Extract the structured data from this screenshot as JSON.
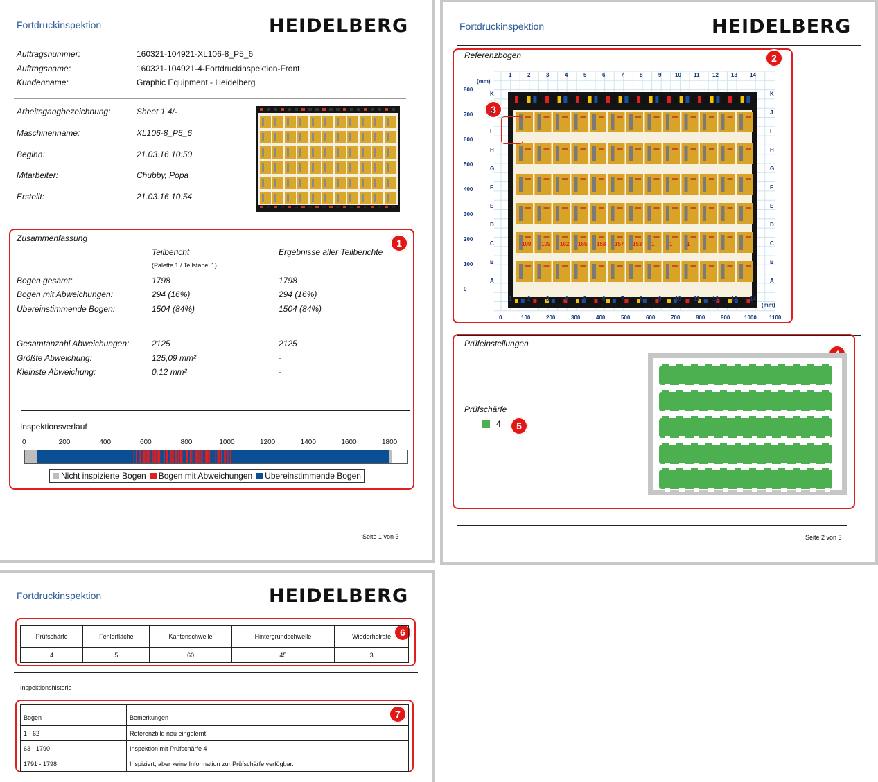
{
  "doc_title": "Fortdruckinspektion",
  "logo_text": "HEIDELBERG",
  "page1": {
    "info_top": [
      {
        "label": "Auftragsnummer:",
        "value": "160321-104921-XL106-8_P5_6"
      },
      {
        "label": "Auftragsname:",
        "value": "160321-104921-4-Fortdruckinspektion-Front"
      },
      {
        "label": "Kundenname:",
        "value": "Graphic Equipment - Heidelberg"
      }
    ],
    "info_job": [
      {
        "label": "Arbeitsgangbezeichnung:",
        "value": "Sheet 1  4/-"
      },
      {
        "label": "Maschinenname:",
        "value": "XL106-8_P5_6"
      },
      {
        "label": "Beginn:",
        "value": "21.03.16 10:50"
      },
      {
        "label": "Mitarbeiter:",
        "value": "Chubby, Popa"
      },
      {
        "label": "Erstellt:",
        "value": "21.03.16 10:54"
      }
    ],
    "summary": {
      "title": "Zusammenfassung",
      "col1_head": "Teilbericht",
      "col1_sub": "(Palette 1 / Teilstapel 1)",
      "col2_head": "Ergebnisse aller Teilberichte",
      "rows": [
        {
          "label": "Bogen gesamt:",
          "v1": "1798",
          "v2": "1798"
        },
        {
          "label": "Bogen mit Abweichungen:",
          "v1": "294 (16%)",
          "v2": "294 (16%)"
        },
        {
          "label": "Übereinstimmende Bogen:",
          "v1": "1504 (84%)",
          "v2": "1504 (84%)"
        }
      ],
      "rows2": [
        {
          "label": "Gesamtanzahl Abweichungen:",
          "v1": "2125",
          "v2": "2125"
        },
        {
          "label": "Größte Abweichung:",
          "v1": "125,09 mm²",
          "v2": "-"
        },
        {
          "label": "Kleinste Abweichung:",
          "v1": "0,12 mm²",
          "v2": "-"
        }
      ]
    },
    "inspection": {
      "title": "Inspektionsverlauf",
      "ticks": [
        "0",
        "200",
        "400",
        "600",
        "800",
        "1000",
        "1200",
        "1400",
        "1600",
        "1800"
      ],
      "legend": [
        {
          "label": "Nicht inspizierte Bogen",
          "color": "#bdbdbd"
        },
        {
          "label": "Bogen mit Abweichungen",
          "color": "#e02020"
        },
        {
          "label": "Übereinstimmende Bogen",
          "color": "#0a4f96"
        }
      ]
    },
    "footer": "Seite 1 von 3",
    "badge": "1"
  },
  "page2": {
    "ref_title": "Referenzbogen",
    "columns": [
      "1",
      "2",
      "3",
      "4",
      "5",
      "6",
      "7",
      "8",
      "9",
      "10",
      "11",
      "12",
      "13",
      "14"
    ],
    "rows": [
      "K",
      "J",
      "I",
      "H",
      "G",
      "F",
      "E",
      "D",
      "C",
      "B",
      "A"
    ],
    "y_ticks": [
      "800",
      "700",
      "600",
      "500",
      "400",
      "300",
      "200",
      "100",
      "0"
    ],
    "x_ticks": [
      "0",
      "100",
      "200",
      "300",
      "400",
      "500",
      "600",
      "700",
      "800",
      "900",
      "1000",
      "1100"
    ],
    "unit": "(mm)",
    "settings_title": "Prüfeinstellungen",
    "sharpness_label": "Prüfschärfe",
    "sharpness_value": "4",
    "sharpness_color": "#4caf50",
    "footer": "Seite 2 von 3",
    "badges": [
      "2",
      "3",
      "4",
      "5"
    ]
  },
  "page3": {
    "params_headers": [
      "Prüfschärfe",
      "Fehlerfläche",
      "Kantenschwelle",
      "Hintergrundschwelle",
      "Wiederholrate"
    ],
    "params_values": [
      "4",
      "5",
      "60",
      "45",
      "3"
    ],
    "history_title": "Inspektionshistorie",
    "history_headers": [
      "Bogen",
      "Bemerkungen"
    ],
    "history_rows": [
      [
        "1 - 62",
        "Referenzbild neu eingelernt"
      ],
      [
        "63 - 1790",
        "Inspektion mit Prüfschärfe 4"
      ],
      [
        "1791 - 1798",
        "Inspiziert, aber keine Information zur Prüfschärfe verfügbar."
      ]
    ],
    "badges": [
      "6",
      "7"
    ]
  }
}
